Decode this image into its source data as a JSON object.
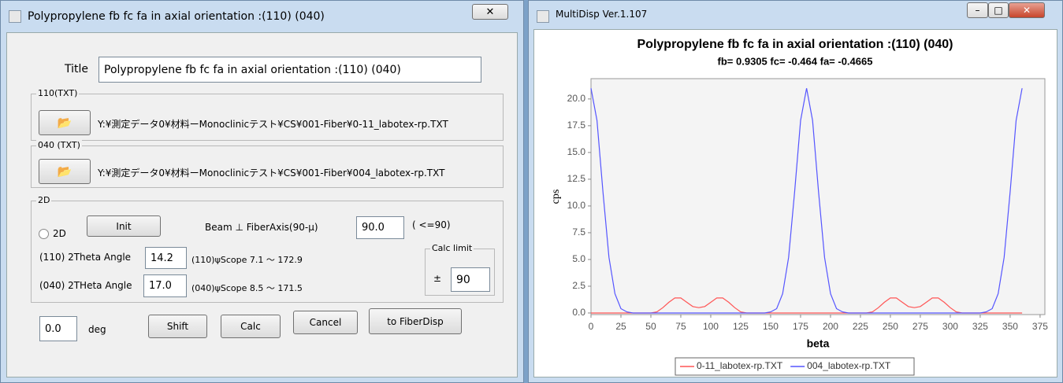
{
  "dialog": {
    "title": "Polypropylene fb fc fa in axial orientation :(110) (040)",
    "title_label": "Title",
    "title_value": "Polypropylene fb fc fa in axial orientation :(110) (040)",
    "group_110": {
      "label": "110(TXT)",
      "path": "Y:¥測定データ0¥材料ーMonoclinicテスト¥CS¥001-Fiber¥0-11_labotex-rp.TXT"
    },
    "group_040": {
      "label": "040 (TXT)",
      "path": "Y:¥測定データ0¥材料ーMonoclinicテスト¥CS¥001-Fiber¥004_labotex-rp.TXT"
    },
    "group_2d": {
      "label": "2D",
      "radio": "2D",
      "init": "Init",
      "beam_label": "Beam ⊥ FiberAxis(90-μ)",
      "beam_value": "90.0",
      "beam_hint": "( <=90)",
      "angle_110_label": "(110) 2Theta Angle",
      "angle_110_value": "14.2",
      "scope_110": "(110)ψScope 7.1 ～ 172.9",
      "angle_040_label": "(040) 2THeta Angle",
      "angle_040_value": "17.0",
      "scope_040": "(040)ψScope 8.5 ～ 171.5",
      "calc_limit": {
        "label": "Calc limit",
        "sign": "±",
        "value": "90"
      }
    },
    "shift_value": "0.0",
    "shift_unit": "deg",
    "buttons": [
      "Shift",
      "Calc",
      "Cancel",
      "to FiberDisp"
    ]
  },
  "window": {
    "title": "MultiDisp Ver.1.107"
  },
  "chart_data": {
    "type": "line",
    "title": "Polypropylene fb fc fa in axial orientation :(110) (040)",
    "subtitle": "fb= 0.9305 fc= -0.464 fa= -0.4665",
    "x_label": "beta",
    "y_label": "cps",
    "x": [
      0,
      5,
      10,
      15,
      20,
      25,
      30,
      35,
      40,
      45,
      50,
      55,
      60,
      65,
      70,
      75,
      80,
      85,
      90,
      95,
      100,
      105,
      110,
      115,
      120,
      125,
      130,
      135,
      140,
      145,
      150,
      155,
      160,
      165,
      170,
      175,
      180,
      185,
      190,
      195,
      200,
      205,
      210,
      215,
      220,
      225,
      230,
      235,
      240,
      245,
      250,
      255,
      260,
      265,
      270,
      275,
      280,
      285,
      290,
      295,
      300,
      305,
      310,
      315,
      320,
      325,
      330,
      335,
      340,
      345,
      350,
      355,
      360
    ],
    "series": [
      {
        "name": "0-11_labotex-rp.TXT",
        "color": "#ff5555",
        "values": [
          0,
          0,
          0,
          0,
          0,
          0,
          0,
          0,
          0,
          0,
          0,
          0.1,
          0.5,
          1.0,
          1.4,
          1.4,
          1.0,
          0.6,
          0.5,
          0.6,
          1.0,
          1.4,
          1.4,
          1.0,
          0.5,
          0.1,
          0,
          0,
          0,
          0,
          0,
          0,
          0,
          0,
          0,
          0,
          0,
          0,
          0,
          0,
          0,
          0,
          0,
          0,
          0,
          0,
          0,
          0.1,
          0.5,
          1.0,
          1.4,
          1.4,
          1.0,
          0.6,
          0.5,
          0.6,
          1.0,
          1.4,
          1.4,
          1.0,
          0.5,
          0.1,
          0,
          0,
          0,
          0,
          0,
          0,
          0,
          0,
          0,
          0,
          0
        ]
      },
      {
        "name": "004_labotex-rp.TXT",
        "color": "#5555ff",
        "values": [
          21,
          18,
          11.3,
          5.2,
          1.8,
          0.4,
          0.1,
          0,
          0,
          0,
          0,
          0,
          0,
          0,
          0,
          0,
          0,
          0,
          0,
          0,
          0,
          0,
          0,
          0,
          0,
          0,
          0,
          0,
          0,
          0,
          0.1,
          0.4,
          1.8,
          5.2,
          11.3,
          18,
          21,
          18,
          11.3,
          5.2,
          1.8,
          0.4,
          0.1,
          0,
          0,
          0,
          0,
          0,
          0,
          0,
          0,
          0,
          0,
          0,
          0,
          0,
          0,
          0,
          0,
          0,
          0,
          0,
          0,
          0,
          0,
          0,
          0.1,
          0.4,
          1.8,
          5.2,
          11.3,
          18,
          21
        ]
      }
    ],
    "xlim": [
      0,
      379
    ],
    "ylim": [
      -0.15,
      21.9
    ],
    "xticks": [
      0,
      25,
      50,
      75,
      100,
      125,
      150,
      175,
      200,
      225,
      250,
      275,
      300,
      325,
      350,
      375
    ],
    "yticks": [
      {
        "value": 0,
        "label": "0.0"
      },
      2.5,
      {
        "value": 5,
        "label": "5.0"
      },
      7.5,
      {
        "value": 10,
        "label": "10.0"
      },
      12.5,
      {
        "value": 15,
        "label": "15.0"
      },
      17.5,
      {
        "value": 20,
        "label": "20.0"
      }
    ],
    "grid": false,
    "legend": "bottom"
  }
}
